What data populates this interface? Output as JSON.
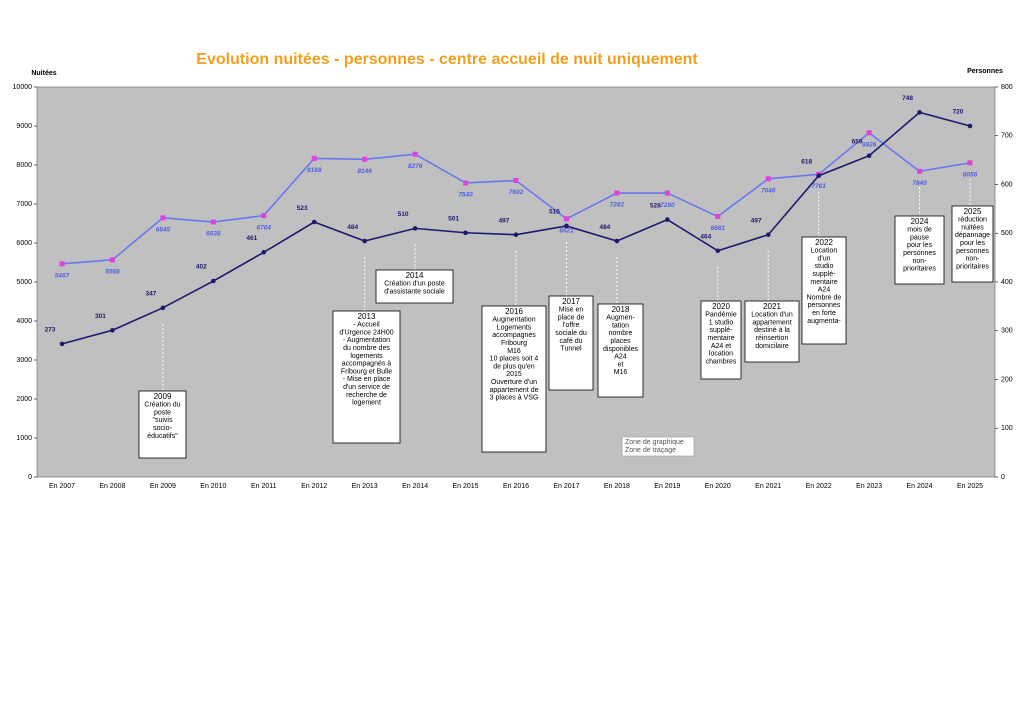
{
  "chart_data": {
    "type": "line",
    "title": "Evolution nuitées - personnes - centre accueil de nuit uniquement",
    "y_label": "Nuitées",
    "y2_label": "Personnes",
    "categories": [
      "En 2007",
      "En 2008",
      "En 2009",
      "En 2010",
      "En 2011",
      "En 2012",
      "En 2013",
      "En 2014",
      "En 2015",
      "En 2016",
      "En 2017",
      "En 2018",
      "En 2019",
      "En 2020",
      "En 2021",
      "En 2022",
      "En 2023",
      "En 2024",
      "En 2025"
    ],
    "series": [
      {
        "name": "Nuitées",
        "color": "#6a78f0",
        "marker_color": "#e040e0",
        "values": [
          5467,
          5568,
          6645,
          6538,
          6704,
          8168,
          8146,
          8276,
          7540,
          7602,
          6621,
          7282,
          7280,
          6681,
          7646,
          7761,
          8826,
          7840,
          8056
        ]
      },
      {
        "name": "Personnes",
        "color": "#1c1a6e",
        "axis": "y2",
        "values": [
          273,
          301,
          347,
          402,
          461,
          523,
          484,
          510,
          501,
          497,
          515,
          484,
          528,
          464,
          497,
          618,
          659,
          748,
          720
        ]
      }
    ],
    "ylim": [
      0,
      10000
    ],
    "yticks": [
      0,
      1000,
      2000,
      3000,
      4000,
      5000,
      6000,
      7000,
      8000,
      9000,
      10000
    ],
    "y2lim": [
      0,
      800
    ],
    "y2ticks": [
      0,
      100,
      200,
      300,
      400,
      500,
      600,
      700,
      800
    ],
    "annotations": [
      [
        "2009",
        "Création du",
        "poste",
        "\"suivis",
        "socio-",
        "éducatifs\""
      ],
      [
        "2013",
        "- Accueil",
        "d'Urgence 24H00",
        "- Augmentation",
        "du nombre des",
        "logements",
        "accompagnés à",
        "Fribourg et Bulle",
        "- Mise en place",
        "d'un service de",
        "recherche de",
        "logement"
      ],
      [
        "2014",
        "Création d'un poste",
        "d'assistante sociale"
      ],
      [
        "2016",
        "Augmentation",
        "Logements",
        "accompagnés",
        "Fribourg",
        "M16",
        "10 places soit 4",
        "de plus qu'en",
        "2015",
        "Ouverture d'un",
        "appartement de",
        "3 places à VSG"
      ],
      [
        "2017",
        "Mise en",
        "place de",
        "l'offre",
        "sociale du",
        "café du",
        "Tunnel"
      ],
      [
        "2018",
        "Augmen-",
        "tation",
        "nombre",
        "places",
        "disponibles",
        "A24",
        "et",
        "M16"
      ],
      [
        "2020",
        "Pandémie",
        "1 studio",
        "supplé-",
        "mentaire",
        "A24 et",
        "location",
        "chambres"
      ],
      [
        "2021",
        "Location d'un",
        "appartement",
        "destiné à la",
        "réinsertion",
        "domicilaire"
      ],
      [
        "2022",
        "Location",
        "d'un",
        "studio",
        "supplé-",
        "mentaire",
        "A24",
        "Nombre de",
        "personnes",
        "en forte",
        "augmenta-"
      ],
      [
        "2024",
        "mois de",
        "pause",
        "pour les",
        "personnes",
        "non-",
        "prioritaires"
      ],
      [
        "2025",
        "réduction",
        "nuitées",
        "dépannage",
        "pour les",
        "personnes",
        "non-",
        "prioritaires"
      ]
    ],
    "tooltip": [
      "Zone de graphique",
      "Zone de traçage"
    ]
  }
}
